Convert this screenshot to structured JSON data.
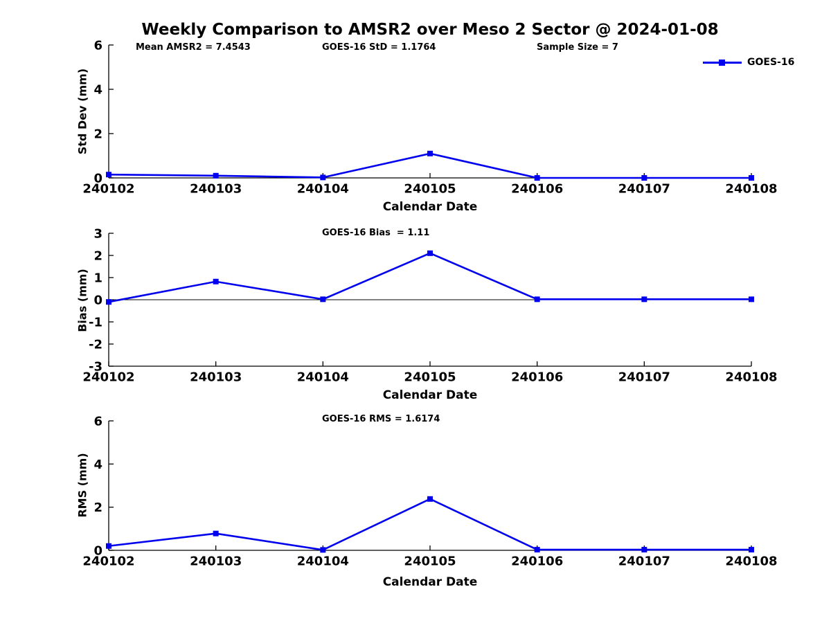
{
  "figure": {
    "title": "Weekly Comparison to AMSR2 over Meso 2 Sector @ 2024-01-08"
  },
  "legend": {
    "label": "GOES-16"
  },
  "colors": {
    "line": "#0000EE",
    "axis": "#000000",
    "text": "#000000",
    "background": "#FFFFFF"
  },
  "chart_data": [
    {
      "type": "line",
      "id": "stddev",
      "annotations": {
        "left": "Mean AMSR2 = 7.4543",
        "center": "GOES-16 StD = 1.1764",
        "right": "Sample Size = 7"
      },
      "xlabel": "Calendar Date",
      "ylabel": "Std Dev (mm)",
      "categories": [
        "240102",
        "240103",
        "240104",
        "240105",
        "240106",
        "240107",
        "240108"
      ],
      "series": [
        {
          "name": "GOES-16",
          "values": [
            0.15,
            0.1,
            0.02,
            1.1,
            0.0,
            0.0,
            0.0
          ]
        }
      ],
      "ylim": [
        0,
        6
      ],
      "yticks": [
        0,
        2,
        4,
        6
      ],
      "grid": false,
      "legend_position": "top-right"
    },
    {
      "type": "line",
      "id": "bias",
      "annotations": {
        "center": "GOES-16 Bias  = 1.11"
      },
      "xlabel": "Calendar Date",
      "ylabel": "Bias (mm)",
      "categories": [
        "240102",
        "240103",
        "240104",
        "240105",
        "240106",
        "240107",
        "240108"
      ],
      "series": [
        {
          "name": "GOES-16",
          "values": [
            -0.1,
            0.82,
            0.02,
            2.1,
            0.02,
            0.02,
            0.02
          ]
        }
      ],
      "ylim": [
        -3,
        3
      ],
      "yticks": [
        -3,
        -2,
        -1,
        0,
        1,
        2,
        3
      ],
      "zero_line": true,
      "grid": false
    },
    {
      "type": "line",
      "id": "rms",
      "annotations": {
        "center": "GOES-16 RMS = 1.6174"
      },
      "xlabel": "Calendar Date",
      "ylabel": "RMS (mm)",
      "categories": [
        "240102",
        "240103",
        "240104",
        "240105",
        "240106",
        "240107",
        "240108"
      ],
      "series": [
        {
          "name": "GOES-16",
          "values": [
            0.2,
            0.78,
            0.02,
            2.38,
            0.03,
            0.03,
            0.03
          ]
        }
      ],
      "ylim": [
        0,
        6
      ],
      "yticks": [
        0,
        2,
        4,
        6
      ],
      "grid": false
    }
  ]
}
